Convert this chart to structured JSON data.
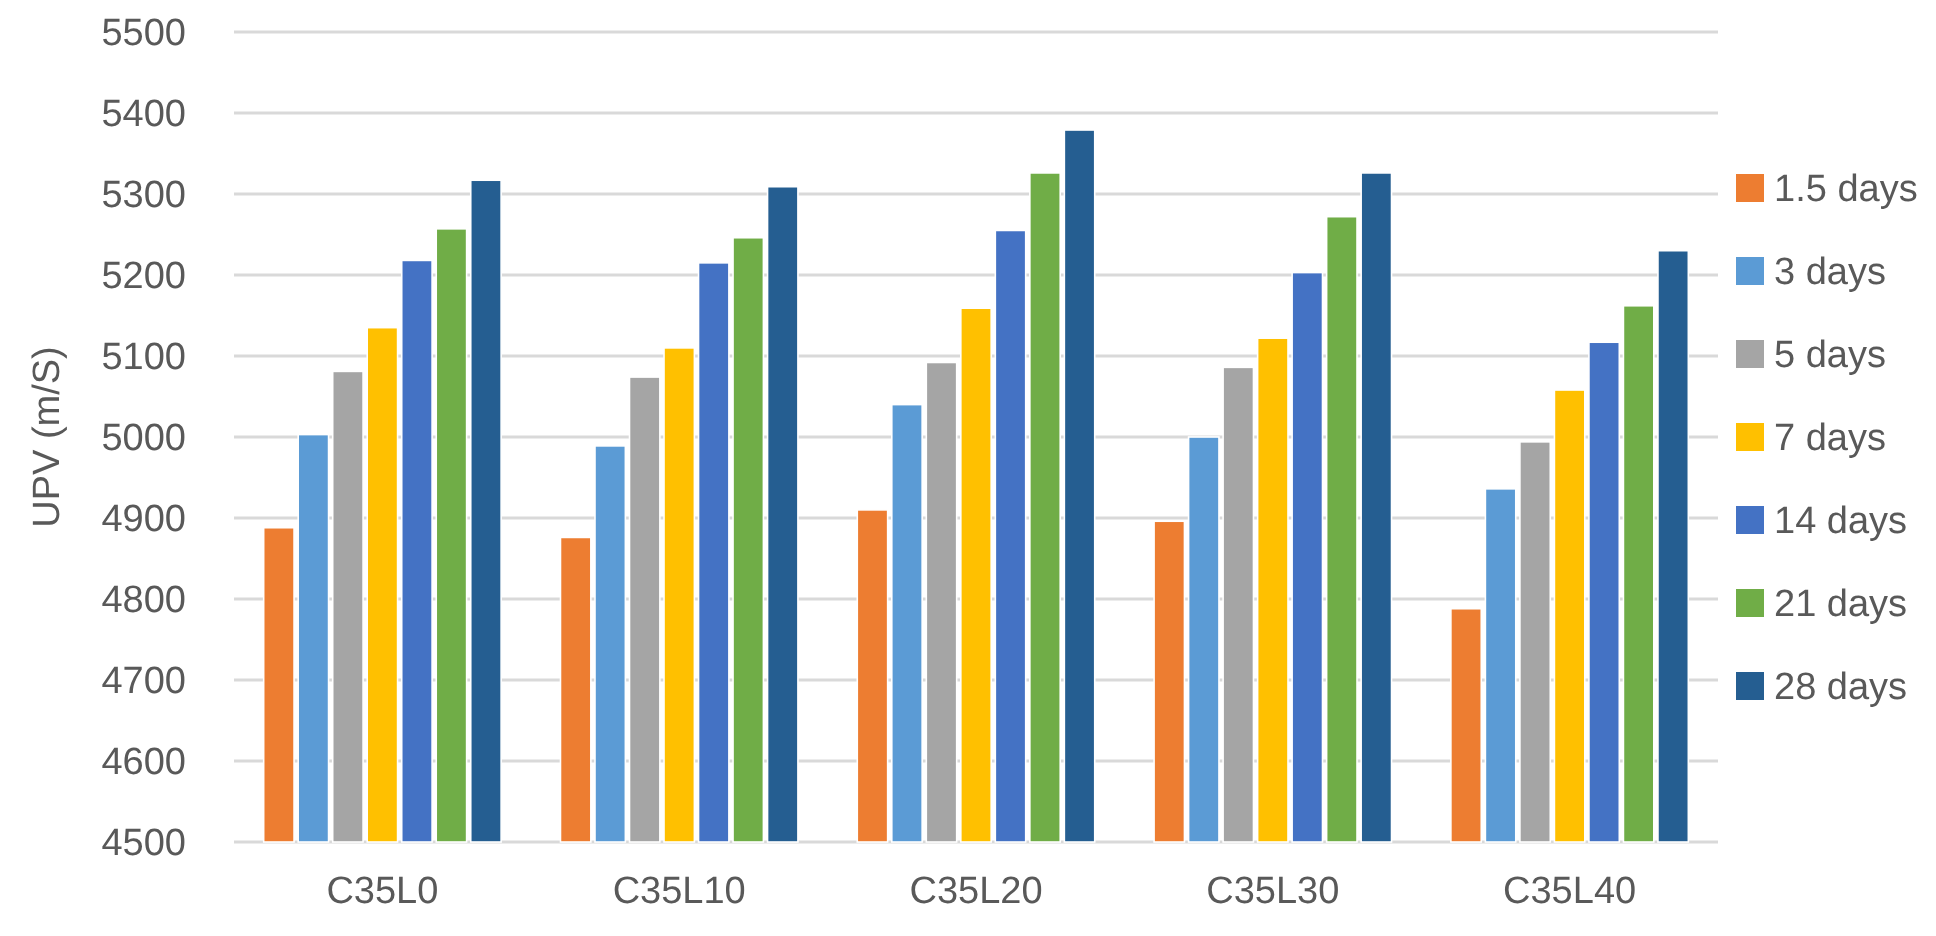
{
  "chart_data": {
    "type": "bar",
    "ylabel": "UPV (m/S)",
    "categories": [
      "C35L0",
      "C35L10",
      "C35L20",
      "C35L30",
      "C35L40"
    ],
    "series": [
      {
        "name": "1.5 days",
        "color": "#ed7d31",
        "values": [
          4888,
          4876,
          4910,
          4896,
          4788
        ]
      },
      {
        "name": "3 days",
        "color": "#5b9bd5",
        "values": [
          5003,
          4989,
          5040,
          5000,
          4936
        ]
      },
      {
        "name": "5 days",
        "color": "#a5a5a5",
        "values": [
          5081,
          5074,
          5092,
          5086,
          4994
        ]
      },
      {
        "name": "7 days",
        "color": "#ffc000",
        "values": [
          5135,
          5110,
          5159,
          5122,
          5058
        ]
      },
      {
        "name": "14 days",
        "color": "#4472c4",
        "values": [
          5218,
          5215,
          5255,
          5203,
          5117
        ]
      },
      {
        "name": "21 days",
        "color": "#70ad47",
        "values": [
          5257,
          5246,
          5326,
          5272,
          5162
        ]
      },
      {
        "name": "28 days",
        "color": "#255e91",
        "values": [
          5317,
          5309,
          5379,
          5326,
          5230
        ]
      }
    ],
    "ylim": [
      4500,
      5500
    ],
    "yticks": [
      4500,
      4600,
      4700,
      4800,
      4900,
      5000,
      5100,
      5200,
      5300,
      5400,
      5500
    ],
    "grid": "y",
    "legend": "right"
  }
}
